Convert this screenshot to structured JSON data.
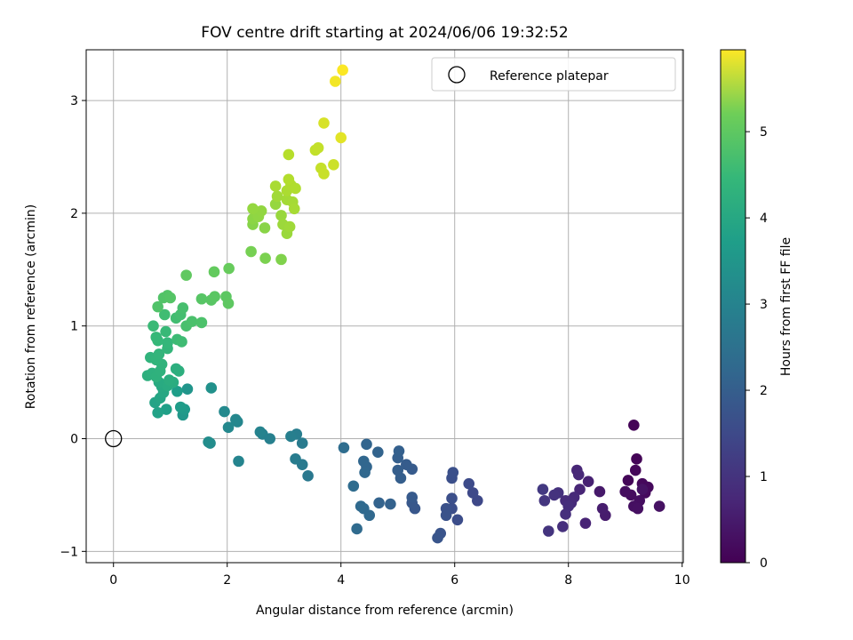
{
  "chart_data": {
    "type": "scatter",
    "title": "FOV centre drift starting at 2024/06/06 19:32:52",
    "xlabel": "Angular distance from reference (arcmin)",
    "ylabel": "Rotation from reference (arcmin)",
    "xlim": [
      -0.48,
      10.02
    ],
    "ylim": [
      -1.1,
      3.45
    ],
    "xticks": [
      0,
      2,
      4,
      6,
      8,
      10
    ],
    "yticks": [
      -1,
      0,
      1,
      2,
      3
    ],
    "grid": true,
    "colormap": "viridis",
    "colorbar": {
      "label": "Hours from first FF file",
      "range": [
        0,
        5.95
      ],
      "ticks": [
        0,
        1,
        2,
        3,
        4,
        5
      ]
    },
    "legend": {
      "position": "top-right",
      "entries": [
        {
          "name": "Reference platepar",
          "marker": "open-circle"
        }
      ]
    },
    "reference_point": {
      "x": 0,
      "y": 0
    },
    "points": [
      {
        "x": 9.15,
        "y": 0.12,
        "c": 0.05
      },
      {
        "x": 9.2,
        "y": -0.18,
        "c": 0.06
      },
      {
        "x": 9.05,
        "y": -0.37,
        "c": 0.08
      },
      {
        "x": 9.18,
        "y": -0.28,
        "c": 0.1
      },
      {
        "x": 9.3,
        "y": -0.4,
        "c": 0.12
      },
      {
        "x": 9.4,
        "y": -0.43,
        "c": 0.14
      },
      {
        "x": 9.35,
        "y": -0.48,
        "c": 0.16
      },
      {
        "x": 9.1,
        "y": -0.5,
        "c": 0.18
      },
      {
        "x": 9.0,
        "y": -0.47,
        "c": 0.2
      },
      {
        "x": 9.25,
        "y": -0.55,
        "c": 0.22
      },
      {
        "x": 9.15,
        "y": -0.6,
        "c": 0.24
      },
      {
        "x": 9.22,
        "y": -0.62,
        "c": 0.26
      },
      {
        "x": 9.6,
        "y": -0.6,
        "c": 0.28
      },
      {
        "x": 9.3,
        "y": -0.45,
        "c": 0.3
      },
      {
        "x": 8.55,
        "y": -0.47,
        "c": 0.4
      },
      {
        "x": 8.65,
        "y": -0.68,
        "c": 0.45
      },
      {
        "x": 8.6,
        "y": -0.62,
        "c": 0.48
      },
      {
        "x": 8.35,
        "y": -0.38,
        "c": 0.55
      },
      {
        "x": 8.3,
        "y": -0.75,
        "c": 0.6
      },
      {
        "x": 8.2,
        "y": -0.45,
        "c": 0.62
      },
      {
        "x": 8.15,
        "y": -0.28,
        "c": 0.65
      },
      {
        "x": 8.18,
        "y": -0.32,
        "c": 0.68
      },
      {
        "x": 8.1,
        "y": -0.52,
        "c": 0.7
      },
      {
        "x": 8.05,
        "y": -0.57,
        "c": 0.72
      },
      {
        "x": 7.95,
        "y": -0.55,
        "c": 0.75
      },
      {
        "x": 8.0,
        "y": -0.6,
        "c": 0.78
      },
      {
        "x": 7.95,
        "y": -0.67,
        "c": 0.8
      },
      {
        "x": 7.9,
        "y": -0.78,
        "c": 0.82
      },
      {
        "x": 7.82,
        "y": -0.48,
        "c": 0.85
      },
      {
        "x": 7.75,
        "y": -0.5,
        "c": 0.88
      },
      {
        "x": 7.65,
        "y": -0.82,
        "c": 0.9
      },
      {
        "x": 7.58,
        "y": -0.55,
        "c": 0.95
      },
      {
        "x": 7.55,
        "y": -0.45,
        "c": 1.0
      },
      {
        "x": 6.4,
        "y": -0.55,
        "c": 1.3
      },
      {
        "x": 6.32,
        "y": -0.48,
        "c": 1.33
      },
      {
        "x": 6.25,
        "y": -0.4,
        "c": 1.36
      },
      {
        "x": 6.05,
        "y": -0.72,
        "c": 1.4
      },
      {
        "x": 5.95,
        "y": -0.62,
        "c": 1.42
      },
      {
        "x": 5.95,
        "y": -0.53,
        "c": 1.44
      },
      {
        "x": 5.95,
        "y": -0.35,
        "c": 1.46
      },
      {
        "x": 5.97,
        "y": -0.3,
        "c": 1.48
      },
      {
        "x": 5.85,
        "y": -0.62,
        "c": 1.5
      },
      {
        "x": 5.85,
        "y": -0.68,
        "c": 1.52
      },
      {
        "x": 5.75,
        "y": -0.84,
        "c": 1.55
      },
      {
        "x": 5.7,
        "y": -0.88,
        "c": 1.58
      },
      {
        "x": 5.3,
        "y": -0.62,
        "c": 1.62
      },
      {
        "x": 5.25,
        "y": -0.57,
        "c": 1.65
      },
      {
        "x": 5.25,
        "y": -0.52,
        "c": 1.68
      },
      {
        "x": 5.25,
        "y": -0.27,
        "c": 1.7
      },
      {
        "x": 5.15,
        "y": -0.23,
        "c": 1.73
      },
      {
        "x": 5.05,
        "y": -0.35,
        "c": 1.76
      },
      {
        "x": 5.0,
        "y": -0.28,
        "c": 1.78
      },
      {
        "x": 5.0,
        "y": -0.17,
        "c": 1.8
      },
      {
        "x": 5.02,
        "y": -0.11,
        "c": 1.82
      },
      {
        "x": 4.87,
        "y": -0.58,
        "c": 1.85
      },
      {
        "x": 4.67,
        "y": -0.57,
        "c": 1.88
      },
      {
        "x": 4.65,
        "y": -0.12,
        "c": 1.9
      },
      {
        "x": 4.45,
        "y": -0.05,
        "c": 1.92
      },
      {
        "x": 4.45,
        "y": -0.25,
        "c": 1.94
      },
      {
        "x": 4.4,
        "y": -0.2,
        "c": 1.96
      },
      {
        "x": 4.42,
        "y": -0.3,
        "c": 1.98
      },
      {
        "x": 4.5,
        "y": -0.68,
        "c": 2.0
      },
      {
        "x": 4.4,
        "y": -0.62,
        "c": 2.02
      },
      {
        "x": 4.35,
        "y": -0.6,
        "c": 2.04
      },
      {
        "x": 4.28,
        "y": -0.8,
        "c": 2.06
      },
      {
        "x": 4.22,
        "y": -0.42,
        "c": 2.08
      },
      {
        "x": 4.05,
        "y": -0.08,
        "c": 2.1
      },
      {
        "x": 3.42,
        "y": -0.33,
        "c": 2.4
      },
      {
        "x": 3.32,
        "y": -0.23,
        "c": 2.43
      },
      {
        "x": 3.32,
        "y": -0.04,
        "c": 2.46
      },
      {
        "x": 3.2,
        "y": -0.18,
        "c": 2.5
      },
      {
        "x": 3.22,
        "y": 0.04,
        "c": 2.53
      },
      {
        "x": 3.12,
        "y": 0.02,
        "c": 2.56
      },
      {
        "x": 2.75,
        "y": 0.0,
        "c": 2.6
      },
      {
        "x": 2.62,
        "y": 0.04,
        "c": 2.63
      },
      {
        "x": 2.58,
        "y": 0.06,
        "c": 2.66
      },
      {
        "x": 2.2,
        "y": -0.2,
        "c": 2.7
      },
      {
        "x": 2.18,
        "y": 0.15,
        "c": 2.73
      },
      {
        "x": 2.15,
        "y": 0.17,
        "c": 2.76
      },
      {
        "x": 2.02,
        "y": 0.1,
        "c": 2.79
      },
      {
        "x": 1.95,
        "y": 0.24,
        "c": 2.82
      },
      {
        "x": 1.7,
        "y": -0.04,
        "c": 2.88
      },
      {
        "x": 1.67,
        "y": -0.03,
        "c": 2.9
      },
      {
        "x": 1.72,
        "y": 0.45,
        "c": 3.0
      },
      {
        "x": 1.3,
        "y": 0.44,
        "c": 3.1
      },
      {
        "x": 1.22,
        "y": 0.21,
        "c": 3.15
      },
      {
        "x": 1.25,
        "y": 0.26,
        "c": 3.2
      },
      {
        "x": 1.18,
        "y": 0.28,
        "c": 3.25
      },
      {
        "x": 1.12,
        "y": 0.42,
        "c": 3.3
      },
      {
        "x": 0.93,
        "y": 0.26,
        "c": 3.35
      },
      {
        "x": 0.78,
        "y": 0.23,
        "c": 3.4
      },
      {
        "x": 0.73,
        "y": 0.32,
        "c": 3.45
      },
      {
        "x": 0.82,
        "y": 0.36,
        "c": 3.5
      },
      {
        "x": 0.88,
        "y": 0.41,
        "c": 3.55
      },
      {
        "x": 0.85,
        "y": 0.46,
        "c": 3.58
      },
      {
        "x": 0.8,
        "y": 0.5,
        "c": 3.62
      },
      {
        "x": 0.95,
        "y": 0.47,
        "c": 3.65
      },
      {
        "x": 1.05,
        "y": 0.5,
        "c": 3.68
      },
      {
        "x": 0.98,
        "y": 0.52,
        "c": 3.7
      },
      {
        "x": 1.1,
        "y": 0.62,
        "c": 3.72
      },
      {
        "x": 1.15,
        "y": 0.6,
        "c": 3.74
      },
      {
        "x": 0.6,
        "y": 0.56,
        "c": 3.76
      },
      {
        "x": 0.68,
        "y": 0.58,
        "c": 3.78
      },
      {
        "x": 0.75,
        "y": 0.55,
        "c": 3.8
      },
      {
        "x": 0.82,
        "y": 0.6,
        "c": 3.82
      },
      {
        "x": 0.85,
        "y": 0.66,
        "c": 3.84
      },
      {
        "x": 0.65,
        "y": 0.72,
        "c": 3.86
      },
      {
        "x": 0.75,
        "y": 0.7,
        "c": 3.88
      },
      {
        "x": 0.8,
        "y": 0.75,
        "c": 3.9
      },
      {
        "x": 0.95,
        "y": 0.8,
        "c": 3.92
      },
      {
        "x": 0.95,
        "y": 0.85,
        "c": 3.94
      },
      {
        "x": 0.78,
        "y": 0.87,
        "c": 3.96
      },
      {
        "x": 0.75,
        "y": 0.9,
        "c": 3.98
      },
      {
        "x": 0.92,
        "y": 0.95,
        "c": 4.0
      },
      {
        "x": 0.7,
        "y": 1.0,
        "c": 4.02
      },
      {
        "x": 1.12,
        "y": 0.88,
        "c": 4.05
      },
      {
        "x": 1.2,
        "y": 0.86,
        "c": 4.08
      },
      {
        "x": 0.9,
        "y": 1.1,
        "c": 4.1
      },
      {
        "x": 1.1,
        "y": 1.07,
        "c": 4.12
      },
      {
        "x": 1.18,
        "y": 1.1,
        "c": 4.15
      },
      {
        "x": 1.22,
        "y": 1.16,
        "c": 4.18
      },
      {
        "x": 1.28,
        "y": 1.0,
        "c": 4.2
      },
      {
        "x": 1.38,
        "y": 1.04,
        "c": 4.22
      },
      {
        "x": 1.55,
        "y": 1.03,
        "c": 4.25
      },
      {
        "x": 0.78,
        "y": 1.17,
        "c": 4.28
      },
      {
        "x": 0.88,
        "y": 1.25,
        "c": 4.3
      },
      {
        "x": 0.95,
        "y": 1.27,
        "c": 4.32
      },
      {
        "x": 1.0,
        "y": 1.25,
        "c": 4.34
      },
      {
        "x": 1.55,
        "y": 1.24,
        "c": 4.36
      },
      {
        "x": 1.72,
        "y": 1.23,
        "c": 4.38
      },
      {
        "x": 1.78,
        "y": 1.26,
        "c": 4.4
      },
      {
        "x": 1.98,
        "y": 1.26,
        "c": 4.42
      },
      {
        "x": 2.02,
        "y": 1.2,
        "c": 4.44
      },
      {
        "x": 1.28,
        "y": 1.45,
        "c": 4.46
      },
      {
        "x": 1.77,
        "y": 1.48,
        "c": 4.5
      },
      {
        "x": 2.03,
        "y": 1.51,
        "c": 4.55
      },
      {
        "x": 2.42,
        "y": 1.66,
        "c": 4.7
      },
      {
        "x": 2.67,
        "y": 1.6,
        "c": 4.75
      },
      {
        "x": 2.95,
        "y": 1.59,
        "c": 4.8
      },
      {
        "x": 2.45,
        "y": 1.9,
        "c": 4.85
      },
      {
        "x": 2.66,
        "y": 1.87,
        "c": 4.88
      },
      {
        "x": 2.45,
        "y": 1.95,
        "c": 4.9
      },
      {
        "x": 2.5,
        "y": 2.0,
        "c": 4.92
      },
      {
        "x": 2.55,
        "y": 1.97,
        "c": 4.94
      },
      {
        "x": 2.6,
        "y": 2.02,
        "c": 4.96
      },
      {
        "x": 2.45,
        "y": 2.04,
        "c": 4.98
      },
      {
        "x": 2.85,
        "y": 2.08,
        "c": 5.0
      },
      {
        "x": 2.95,
        "y": 1.98,
        "c": 5.02
      },
      {
        "x": 3.05,
        "y": 1.82,
        "c": 5.04
      },
      {
        "x": 2.98,
        "y": 1.9,
        "c": 5.06
      },
      {
        "x": 3.1,
        "y": 1.88,
        "c": 5.08
      },
      {
        "x": 2.88,
        "y": 2.15,
        "c": 5.1
      },
      {
        "x": 3.05,
        "y": 2.12,
        "c": 5.12
      },
      {
        "x": 3.15,
        "y": 2.1,
        "c": 5.14
      },
      {
        "x": 3.18,
        "y": 2.04,
        "c": 5.16
      },
      {
        "x": 2.85,
        "y": 2.24,
        "c": 5.18
      },
      {
        "x": 3.05,
        "y": 2.2,
        "c": 5.2
      },
      {
        "x": 3.12,
        "y": 2.25,
        "c": 5.22
      },
      {
        "x": 3.2,
        "y": 2.22,
        "c": 5.24
      },
      {
        "x": 3.08,
        "y": 2.3,
        "c": 5.26
      },
      {
        "x": 3.08,
        "y": 2.52,
        "c": 5.3
      },
      {
        "x": 3.55,
        "y": 2.56,
        "c": 5.4
      },
      {
        "x": 3.6,
        "y": 2.58,
        "c": 5.42
      },
      {
        "x": 3.65,
        "y": 2.4,
        "c": 5.44
      },
      {
        "x": 3.7,
        "y": 2.35,
        "c": 5.46
      },
      {
        "x": 3.87,
        "y": 2.43,
        "c": 5.5
      },
      {
        "x": 3.7,
        "y": 2.8,
        "c": 5.6
      },
      {
        "x": 4.0,
        "y": 2.67,
        "c": 5.7
      },
      {
        "x": 3.9,
        "y": 3.17,
        "c": 5.85
      },
      {
        "x": 4.03,
        "y": 3.27,
        "c": 5.93
      }
    ]
  }
}
